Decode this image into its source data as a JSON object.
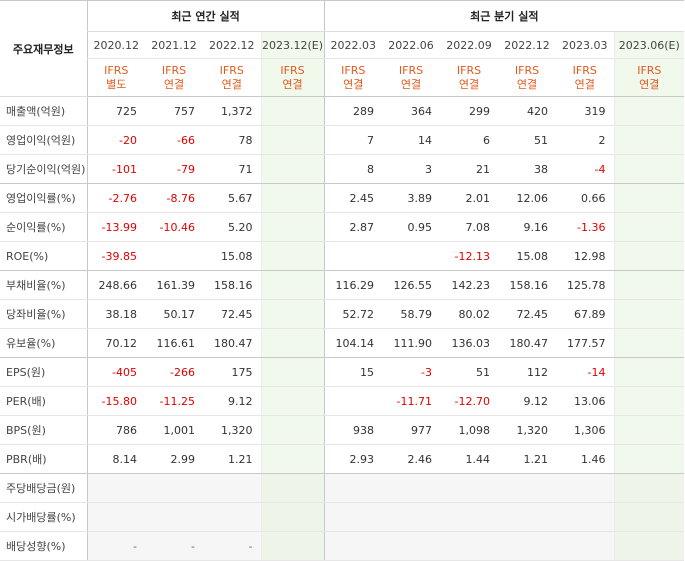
{
  "header": {
    "label": "주요재무정보",
    "annual_group": "최근 연간 실적",
    "quarterly_group": "최근 분기 실적"
  },
  "annual_periods": [
    {
      "date": "2020.12",
      "std": "IFRS",
      "basis": "별도",
      "estimate": false
    },
    {
      "date": "2021.12",
      "std": "IFRS",
      "basis": "연결",
      "estimate": false
    },
    {
      "date": "2022.12",
      "std": "IFRS",
      "basis": "연결",
      "estimate": false
    },
    {
      "date": "2023.12(E)",
      "std": "IFRS",
      "basis": "연결",
      "estimate": true
    }
  ],
  "quarterly_periods": [
    {
      "date": "2022.03",
      "std": "IFRS",
      "basis": "연결",
      "estimate": false
    },
    {
      "date": "2022.06",
      "std": "IFRS",
      "basis": "연결",
      "estimate": false
    },
    {
      "date": "2022.09",
      "std": "IFRS",
      "basis": "연결",
      "estimate": false
    },
    {
      "date": "2022.12",
      "std": "IFRS",
      "basis": "연결",
      "estimate": false
    },
    {
      "date": "2023.03",
      "std": "IFRS",
      "basis": "연결",
      "estimate": false
    },
    {
      "date": "2023.06(E)",
      "std": "IFRS",
      "basis": "연결",
      "estimate": true
    }
  ],
  "rows": [
    {
      "label": "매출액(억원)",
      "annual": [
        "725",
        "757",
        "1,372",
        ""
      ],
      "quarterly": [
        "289",
        "364",
        "299",
        "420",
        "319",
        ""
      ]
    },
    {
      "label": "영업이익(억원)",
      "annual": [
        "-20",
        "-66",
        "78",
        ""
      ],
      "quarterly": [
        "7",
        "14",
        "6",
        "51",
        "2",
        ""
      ]
    },
    {
      "label": "당기순이익(억원)",
      "annual": [
        "-101",
        "-79",
        "71",
        ""
      ],
      "quarterly": [
        "8",
        "3",
        "21",
        "38",
        "-4",
        ""
      ],
      "group_end": true
    },
    {
      "label": "영업이익률(%)",
      "annual": [
        "-2.76",
        "-8.76",
        "5.67",
        ""
      ],
      "quarterly": [
        "2.45",
        "3.89",
        "2.01",
        "12.06",
        "0.66",
        ""
      ]
    },
    {
      "label": "순이익률(%)",
      "annual": [
        "-13.99",
        "-10.46",
        "5.20",
        ""
      ],
      "quarterly": [
        "2.87",
        "0.95",
        "7.08",
        "9.16",
        "-1.36",
        ""
      ]
    },
    {
      "label": "ROE(%)",
      "annual": [
        "-39.85",
        "",
        "15.08",
        ""
      ],
      "quarterly": [
        "",
        "",
        "-12.13",
        "15.08",
        "12.98",
        ""
      ],
      "group_end": true
    },
    {
      "label": "부채비율(%)",
      "annual": [
        "248.66",
        "161.39",
        "158.16",
        ""
      ],
      "quarterly": [
        "116.29",
        "126.55",
        "142.23",
        "158.16",
        "125.78",
        ""
      ]
    },
    {
      "label": "당좌비율(%)",
      "annual": [
        "38.18",
        "50.17",
        "72.45",
        ""
      ],
      "quarterly": [
        "52.72",
        "58.79",
        "80.02",
        "72.45",
        "67.89",
        ""
      ]
    },
    {
      "label": "유보율(%)",
      "annual": [
        "70.12",
        "116.61",
        "180.47",
        ""
      ],
      "quarterly": [
        "104.14",
        "111.90",
        "136.03",
        "180.47",
        "177.57",
        ""
      ],
      "group_end": true
    },
    {
      "label": "EPS(원)",
      "annual": [
        "-405",
        "-266",
        "175",
        ""
      ],
      "quarterly": [
        "15",
        "-3",
        "51",
        "112",
        "-14",
        ""
      ]
    },
    {
      "label": "PER(배)",
      "annual": [
        "-15.80",
        "-11.25",
        "9.12",
        ""
      ],
      "quarterly": [
        "",
        "-11.71",
        "-12.70",
        "9.12",
        "13.06",
        ""
      ]
    },
    {
      "label": "BPS(원)",
      "annual": [
        "786",
        "1,001",
        "1,320",
        ""
      ],
      "quarterly": [
        "938",
        "977",
        "1,098",
        "1,320",
        "1,306",
        ""
      ]
    },
    {
      "label": "PBR(배)",
      "annual": [
        "8.14",
        "2.99",
        "1.21",
        ""
      ],
      "quarterly": [
        "2.93",
        "2.46",
        "1.44",
        "1.21",
        "1.46",
        ""
      ],
      "group_end": true
    },
    {
      "label": "주당배당금(원)",
      "annual": [
        "",
        "",
        "",
        ""
      ],
      "quarterly": [
        "",
        "",
        "",
        "",
        "",
        ""
      ],
      "empty": true
    },
    {
      "label": "시가배당률(%)",
      "annual": [
        "",
        "",
        "",
        ""
      ],
      "quarterly": [
        "",
        "",
        "",
        "",
        "",
        ""
      ],
      "empty": true
    },
    {
      "label": "배당성향(%)",
      "annual": [
        "-",
        "-",
        "-",
        ""
      ],
      "quarterly": [
        "",
        "",
        "",
        "",
        "",
        ""
      ],
      "empty": true
    }
  ]
}
